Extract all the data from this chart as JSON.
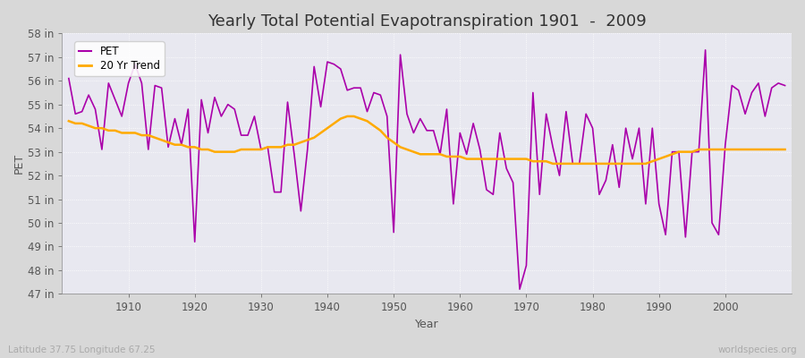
{
  "title": "Yearly Total Potential Evapotranspiration 1901  -  2009",
  "xlabel": "Year",
  "ylabel": "PET",
  "footnote_left": "Latitude 37.75 Longitude 67.25",
  "footnote_right": "worldspecies.org",
  "years": [
    1901,
    1902,
    1903,
    1904,
    1905,
    1906,
    1907,
    1908,
    1909,
    1910,
    1911,
    1912,
    1913,
    1914,
    1915,
    1916,
    1917,
    1918,
    1919,
    1920,
    1921,
    1922,
    1923,
    1924,
    1925,
    1926,
    1927,
    1928,
    1929,
    1930,
    1931,
    1932,
    1933,
    1934,
    1935,
    1936,
    1937,
    1938,
    1939,
    1940,
    1941,
    1942,
    1943,
    1944,
    1945,
    1946,
    1947,
    1948,
    1949,
    1950,
    1951,
    1952,
    1953,
    1954,
    1955,
    1956,
    1957,
    1958,
    1959,
    1960,
    1961,
    1962,
    1963,
    1964,
    1965,
    1966,
    1967,
    1968,
    1969,
    1970,
    1971,
    1972,
    1973,
    1974,
    1975,
    1976,
    1977,
    1978,
    1979,
    1980,
    1981,
    1982,
    1983,
    1984,
    1985,
    1986,
    1987,
    1988,
    1989,
    1990,
    1991,
    1992,
    1993,
    1994,
    1995,
    1996,
    1997,
    1998,
    1999,
    2000,
    2001,
    2002,
    2003,
    2004,
    2005,
    2006,
    2007,
    2008,
    2009
  ],
  "pet": [
    56.1,
    54.6,
    54.7,
    55.4,
    54.8,
    53.1,
    55.9,
    55.2,
    54.5,
    55.9,
    56.7,
    55.9,
    53.1,
    55.8,
    55.7,
    53.2,
    54.4,
    53.3,
    54.8,
    49.2,
    55.2,
    53.8,
    55.3,
    54.5,
    55.0,
    54.8,
    53.7,
    53.7,
    54.5,
    53.1,
    53.2,
    51.3,
    51.3,
    55.1,
    52.9,
    50.5,
    53.1,
    56.6,
    54.9,
    56.8,
    56.7,
    56.5,
    55.6,
    55.7,
    55.7,
    54.7,
    55.5,
    55.4,
    54.5,
    49.6,
    57.1,
    54.6,
    53.8,
    54.4,
    53.9,
    53.9,
    52.9,
    54.8,
    50.8,
    53.8,
    52.9,
    54.2,
    53.1,
    51.4,
    51.2,
    53.8,
    52.3,
    51.7,
    47.2,
    48.2,
    55.5,
    51.2,
    54.6,
    53.2,
    52.0,
    54.7,
    52.5,
    52.5,
    54.6,
    54.0,
    51.2,
    51.8,
    53.3,
    51.5,
    54.0,
    52.7,
    54.0,
    50.8,
    54.0,
    50.8,
    49.5,
    53.0,
    53.0,
    49.4,
    53.0,
    53.0,
    57.3,
    50.0,
    49.5,
    53.3,
    55.8,
    55.6,
    54.6,
    55.5,
    55.9,
    54.5,
    55.7,
    55.9,
    55.8
  ],
  "trend": [
    54.3,
    54.2,
    54.2,
    54.1,
    54.0,
    54.0,
    53.9,
    53.9,
    53.8,
    53.8,
    53.8,
    53.7,
    53.7,
    53.6,
    53.5,
    53.4,
    53.3,
    53.3,
    53.2,
    53.2,
    53.1,
    53.1,
    53.0,
    53.0,
    53.0,
    53.0,
    53.1,
    53.1,
    53.1,
    53.1,
    53.2,
    53.2,
    53.2,
    53.3,
    53.3,
    53.4,
    53.5,
    53.6,
    53.8,
    54.0,
    54.2,
    54.4,
    54.5,
    54.5,
    54.4,
    54.3,
    54.1,
    53.9,
    53.6,
    53.4,
    53.2,
    53.1,
    53.0,
    52.9,
    52.9,
    52.9,
    52.9,
    52.8,
    52.8,
    52.8,
    52.7,
    52.7,
    52.7,
    52.7,
    52.7,
    52.7,
    52.7,
    52.7,
    52.7,
    52.7,
    52.6,
    52.6,
    52.6,
    52.5,
    52.5,
    52.5,
    52.5,
    52.5,
    52.5,
    52.5,
    52.5,
    52.5,
    52.5,
    52.5,
    52.5,
    52.5,
    52.5,
    52.5,
    52.6,
    52.7,
    52.8,
    52.9,
    53.0,
    53.0,
    53.0,
    53.1,
    53.1,
    53.1,
    53.1,
    53.1,
    53.1,
    53.1,
    53.1,
    53.1,
    53.1,
    53.1,
    53.1,
    53.1,
    53.1
  ],
  "pet_color": "#aa00aa",
  "trend_color": "#ffaa00",
  "fig_facecolor": "#d8d8d8",
  "plot_facecolor": "#e8e8f0",
  "grid_color": "#ffffff",
  "text_color": "#555555",
  "title_color": "#333333",
  "footnote_color": "#aaaaaa",
  "ylim": [
    47,
    58
  ],
  "yticks": [
    47,
    48,
    49,
    50,
    51,
    52,
    53,
    54,
    55,
    56,
    57,
    58
  ],
  "xticks": [
    1910,
    1920,
    1930,
    1940,
    1950,
    1960,
    1970,
    1980,
    1990,
    2000
  ],
  "xlim_min": 1900,
  "xlim_max": 2010,
  "title_fontsize": 13,
  "label_fontsize": 9,
  "tick_fontsize": 8.5,
  "footnote_fontsize": 7.5,
  "pet_linewidth": 1.2,
  "trend_linewidth": 1.8
}
